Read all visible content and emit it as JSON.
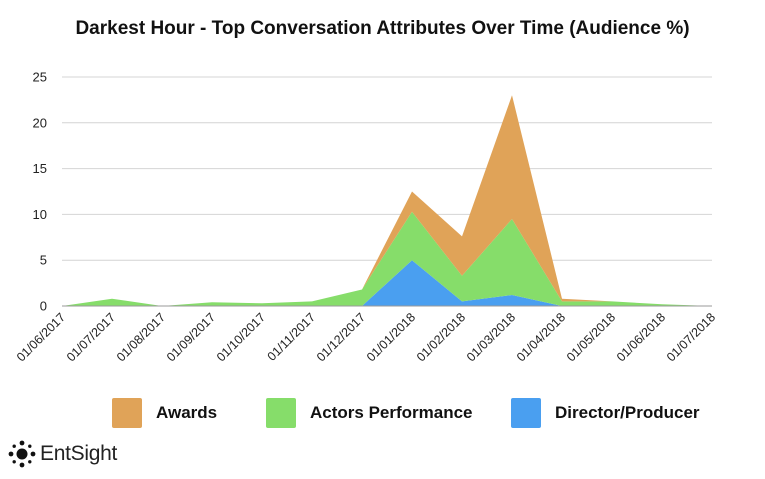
{
  "chart_data": {
    "type": "area",
    "stacked": true,
    "title": "Darkest Hour - Top Conversation Attributes Over Time (Audience %)",
    "xlabel": "",
    "ylabel": "",
    "ylim": [
      0,
      25
    ],
    "yticks": [
      0,
      5,
      10,
      15,
      20,
      25
    ],
    "grid": true,
    "legend_position": "bottom",
    "x": [
      "01/06/2017",
      "01/07/2017",
      "01/08/2017",
      "01/09/2017",
      "01/10/2017",
      "01/11/2017",
      "01/12/2017",
      "01/01/2018",
      "01/02/2018",
      "01/03/2018",
      "01/04/2018",
      "01/05/2018",
      "01/06/2018",
      "01/07/2018"
    ],
    "series": [
      {
        "name": "Director/Producer",
        "color": "#4a9ff0",
        "values": [
          0,
          0,
          0,
          0,
          0,
          0,
          0,
          5.0,
          0.5,
          1.2,
          0,
          0,
          0,
          0
        ]
      },
      {
        "name": "Actors Performance",
        "color": "#86dd6a",
        "values": [
          0,
          0.8,
          0,
          0.4,
          0.3,
          0.5,
          1.8,
          5.3,
          2.8,
          8.3,
          0.5,
          0.5,
          0.2,
          0
        ]
      },
      {
        "name": "Awards",
        "color": "#e0a358",
        "values": [
          0,
          0,
          0,
          0,
          0,
          0,
          0,
          2.2,
          4.3,
          13.5,
          0.3,
          0,
          0,
          0
        ]
      }
    ],
    "legend_order": [
      "Awards",
      "Actors Performance",
      "Director/Producer"
    ]
  },
  "brand": {
    "name": "EntSight"
  }
}
